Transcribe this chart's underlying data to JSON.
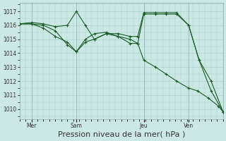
{
  "bg_color": "#cce8e4",
  "grid_color": "#a8ccc8",
  "line_color": "#1a5c28",
  "xlabel": "Pression niveau de la mer( hPa )",
  "xlabel_fontsize": 8,
  "ylim": [
    1009.3,
    1017.6
  ],
  "yticks": [
    1010,
    1011,
    1012,
    1013,
    1014,
    1015,
    1016,
    1017
  ],
  "xtick_labels": [
    "Mer",
    "Sam",
    "Jeu",
    "Ven"
  ],
  "xtick_positions": [
    16,
    76,
    166,
    226
  ],
  "xlim": [
    0,
    272
  ],
  "vline_positions": [
    16,
    76,
    166,
    226
  ],
  "vline_color": "#7a9a96",
  "series1_x": [
    0,
    16,
    32,
    48,
    64,
    76,
    88,
    100,
    116,
    132,
    148,
    158,
    166,
    182,
    196,
    210,
    226,
    240,
    256,
    272
  ],
  "series1_y": [
    1016.1,
    1016.2,
    1016.1,
    1015.9,
    1016.0,
    1017.0,
    1016.0,
    1015.0,
    1015.4,
    1015.4,
    1015.2,
    1015.2,
    1016.9,
    1016.9,
    1016.9,
    1016.9,
    1016.0,
    1013.5,
    1012.0,
    1009.8
  ],
  "series2_x": [
    0,
    16,
    32,
    48,
    64,
    76,
    88,
    100,
    116,
    132,
    148,
    158,
    166,
    182,
    196,
    210,
    226,
    240,
    256,
    272
  ],
  "series2_y": [
    1016.1,
    1016.1,
    1015.8,
    1015.2,
    1014.8,
    1014.1,
    1015.0,
    1015.4,
    1015.5,
    1015.2,
    1015.0,
    1014.7,
    1016.8,
    1016.8,
    1016.8,
    1016.8,
    1016.0,
    1013.5,
    1011.3,
    1009.8
  ],
  "series3_x": [
    0,
    16,
    32,
    48,
    64,
    76,
    88,
    100,
    116,
    132,
    148,
    158,
    166,
    182,
    196,
    210,
    226,
    238,
    252,
    266,
    272
  ],
  "series3_y": [
    1016.1,
    1016.1,
    1016.0,
    1015.6,
    1014.6,
    1014.1,
    1014.8,
    1015.0,
    1015.4,
    1015.2,
    1014.7,
    1014.7,
    1013.5,
    1013.0,
    1012.5,
    1012.0,
    1011.5,
    1011.3,
    1010.8,
    1010.2,
    1009.8
  ]
}
